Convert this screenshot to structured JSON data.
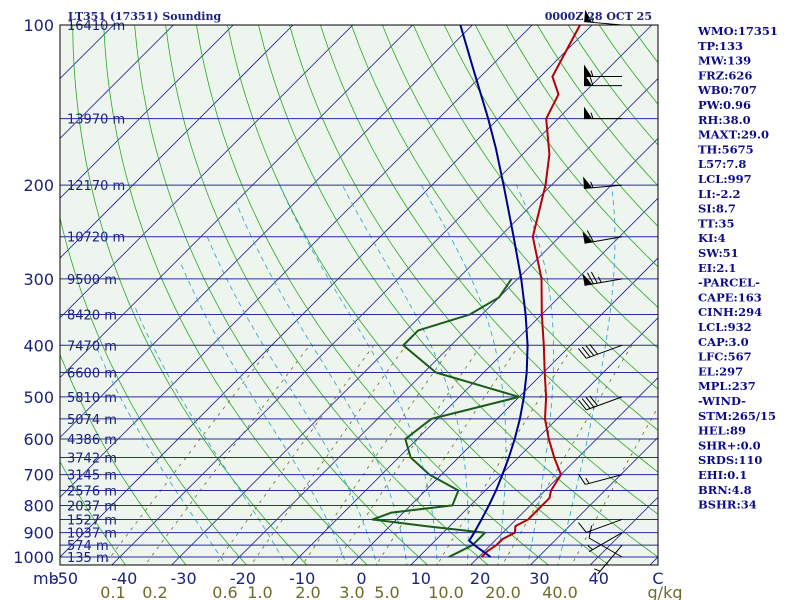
{
  "chart_data": {
    "type": "line",
    "title_left": "LT351 (17351) Sounding",
    "title_right": "0000Z 28 OCT 25",
    "y_axis_unit": "mb",
    "y_scale": "log",
    "ylim": [
      1050,
      100
    ],
    "xlim": [
      -50,
      50
    ],
    "pressure_ticks": [
      100,
      200,
      300,
      400,
      500,
      600,
      700,
      800,
      900,
      1000
    ],
    "temperature_ticks": [
      "-50",
      "-40",
      "-30",
      "-20",
      "-10",
      "0",
      "10",
      "20",
      "30",
      "40",
      "C"
    ],
    "mixing_ratio_labels": [
      "0.1",
      "0.2",
      "0.6",
      "1.0",
      "2.0",
      "3.0",
      "5.0",
      "10.0",
      "20.0",
      "40.0",
      "g/kg"
    ],
    "height_labels": [
      {
        "p": 100,
        "label": "16410 m"
      },
      {
        "p": 150,
        "label": "13970 m"
      },
      {
        "p": 200,
        "label": "12170 m"
      },
      {
        "p": 250,
        "label": "10720 m"
      },
      {
        "p": 300,
        "label": "9500 m"
      },
      {
        "p": 350,
        "label": "8420 m"
      },
      {
        "p": 400,
        "label": "7470 m"
      },
      {
        "p": 450,
        "label": "6600 m"
      },
      {
        "p": 500,
        "label": "5810 m"
      },
      {
        "p": 550,
        "label": "5074 m"
      },
      {
        "p": 600,
        "label": "4386 m"
      },
      {
        "p": 650,
        "label": "3742 m"
      },
      {
        "p": 700,
        "label": "3145 m"
      },
      {
        "p": 750,
        "label": "2576 m"
      },
      {
        "p": 800,
        "label": "2037 m"
      },
      {
        "p": 850,
        "label": "1527 m"
      },
      {
        "p": 900,
        "label": "1037 m"
      },
      {
        "p": 950,
        "label": "574 m"
      },
      {
        "p": 1000,
        "label": "135 m"
      }
    ],
    "series": [
      {
        "key": "temperature",
        "color": "#b3000a",
        "points": [
          [
            1000,
            20.5
          ],
          [
            975,
            20.5
          ],
          [
            950,
            21
          ],
          [
            925,
            21
          ],
          [
            900,
            22
          ],
          [
            875,
            21
          ],
          [
            850,
            22
          ],
          [
            800,
            22
          ],
          [
            775,
            22
          ],
          [
            750,
            21
          ],
          [
            700,
            20
          ],
          [
            650,
            16
          ],
          [
            600,
            12
          ],
          [
            550,
            8
          ],
          [
            500,
            4.5
          ],
          [
            450,
            0.2
          ],
          [
            400,
            -4.5
          ],
          [
            350,
            -10
          ],
          [
            300,
            -16
          ],
          [
            250,
            -24.5
          ],
          [
            200,
            -31
          ],
          [
            175,
            -35.5
          ],
          [
            150,
            -42
          ],
          [
            135,
            -44
          ],
          [
            125,
            -48
          ],
          [
            100,
            -52
          ]
        ]
      },
      {
        "key": "dewpoint",
        "color": "#1a5c1a",
        "points": [
          [
            1000,
            15
          ],
          [
            975,
            16
          ],
          [
            950,
            17
          ],
          [
            925,
            17
          ],
          [
            900,
            17
          ],
          [
            875,
            6
          ],
          [
            850,
            -4
          ],
          [
            825,
            -2
          ],
          [
            800,
            7
          ],
          [
            750,
            5.5
          ],
          [
            700,
            -2
          ],
          [
            650,
            -8
          ],
          [
            600,
            -12
          ],
          [
            550,
            -11
          ],
          [
            500,
            0
          ],
          [
            450,
            -18
          ],
          [
            400,
            -28
          ],
          [
            375,
            -28
          ],
          [
            350,
            -22
          ],
          [
            325,
            -20
          ],
          [
            300,
            -21
          ]
        ]
      },
      {
        "key": "parcel",
        "color": "#00008b",
        "points": [
          [
            1000,
            22
          ],
          [
            975,
            19.7
          ],
          [
            950,
            17.3
          ],
          [
            932,
            15.7
          ],
          [
            900,
            15.2
          ],
          [
            850,
            14.2
          ],
          [
            800,
            13.1
          ],
          [
            750,
            11.8
          ],
          [
            700,
            10.2
          ],
          [
            650,
            8.4
          ],
          [
            600,
            6.3
          ],
          [
            550,
            3.8
          ],
          [
            500,
            0.8
          ],
          [
            450,
            -2.8
          ],
          [
            400,
            -7.2
          ],
          [
            350,
            -12.7
          ],
          [
            300,
            -19.4
          ],
          [
            250,
            -27.7
          ],
          [
            200,
            -38
          ],
          [
            170,
            -45.6
          ],
          [
            150,
            -51.7
          ],
          [
            120,
            -62.9
          ],
          [
            100,
            -72
          ]
        ]
      }
    ],
    "wind_barbs": [
      {
        "p": 1000,
        "dir": 300,
        "kt": 10
      },
      {
        "p": 950,
        "dir": 220,
        "kt": 5
      },
      {
        "p": 900,
        "dir": 240,
        "kt": 5
      },
      {
        "p": 850,
        "dir": 250,
        "kt": 10
      },
      {
        "p": 700,
        "dir": 255,
        "kt": 15
      },
      {
        "p": 500,
        "dir": 250,
        "kt": 40
      },
      {
        "p": 400,
        "dir": 250,
        "kt": 40
      },
      {
        "p": 300,
        "dir": 260,
        "kt": 75
      },
      {
        "p": 250,
        "dir": 260,
        "kt": 60
      },
      {
        "p": 200,
        "dir": 265,
        "kt": 55
      },
      {
        "p": 150,
        "dir": 270,
        "kt": 55
      },
      {
        "p": 130,
        "dir": 270,
        "kt": 60
      },
      {
        "p": 125,
        "dir": 270,
        "kt": 55
      },
      {
        "p": 100,
        "dir": 275,
        "kt": 55
      }
    ],
    "stability_indices": [
      "WMO:17351",
      "TP:133",
      "MW:139",
      "FRZ:626",
      "WB0:707",
      "PW:0.96",
      "RH:38.0",
      "MAXT:29.0",
      "TH:5675",
      "L57:7.8",
      "LCL:997",
      "LI:-2.2",
      "SI:8.7",
      "TT:35",
      "KI:4",
      "SW:51",
      "EI:2.1",
      "-PARCEL-",
      "CAPE:163",
      "CINH:294",
      "LCL:932",
      "CAP:3.0",
      "LFC:567",
      "EL:297",
      "MPL:237",
      "-WIND-",
      "STM:265/15",
      "HEL:89",
      "SHR+:0.0",
      "SRDS:110",
      "EHI:0.1",
      "BRN:4.8",
      "BSHR:34"
    ],
    "colors": {
      "isobar": "#2a2a9a",
      "isotherm": "#1a1a9a",
      "dry_adiabat": "#2aa62a",
      "moist_adiabat": "#3aa8cc",
      "mixing_ratio": "#6b6b2a",
      "plot_bg": "#eef5ee",
      "text": "#1a237e"
    }
  }
}
